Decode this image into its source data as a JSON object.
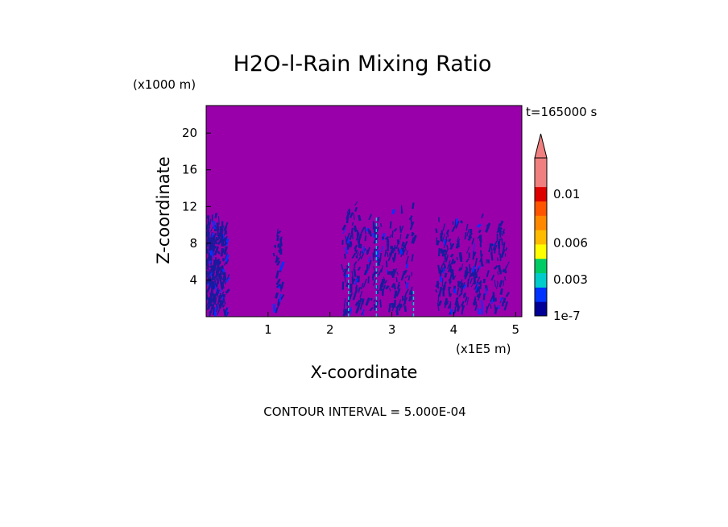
{
  "chart_data": {
    "type": "heatmap",
    "title": "H2O-l-Rain Mixing Ratio",
    "time_label": "t=165000 s",
    "xlabel": "X-coordinate",
    "ylabel": "Z-coordinate",
    "x_unit": "(x1E5 m)",
    "y_unit": "(x1000 m)",
    "xlim": [
      0,
      5.1
    ],
    "ylim": [
      0,
      23
    ],
    "x_ticks": [
      1,
      2,
      3,
      4,
      5
    ],
    "x_tick_labels": [
      "1",
      "2",
      "3",
      "4",
      "5"
    ],
    "y_ticks": [
      4,
      8,
      12,
      16,
      20
    ],
    "y_tick_labels": [
      "4",
      "8",
      "12",
      "16",
      "20"
    ],
    "background_color": "#9900aa",
    "field_color": "#1a1a9e",
    "regions": [
      {
        "x0": 0.0,
        "x1": 0.33,
        "ztop": 11.5,
        "density": "high"
      },
      {
        "x0": 1.1,
        "x1": 1.22,
        "ztop": 11.0,
        "density": "low"
      },
      {
        "x0": 2.2,
        "x1": 3.35,
        "ztop": 12.5,
        "density": "high"
      },
      {
        "x0": 3.7,
        "x1": 4.85,
        "ztop": 11.5,
        "density": "high"
      }
    ],
    "colorbar": {
      "min": 1e-07,
      "max": 0.013,
      "colors": [
        "#000096",
        "#0033ff",
        "#00cccc",
        "#00cc66",
        "#ffff00",
        "#ffbb00",
        "#ff8800",
        "#ff5500",
        "#dd0000",
        "#f08080",
        "#f08080"
      ],
      "tick_labels": [
        "1e-7",
        "0.003",
        "0.006",
        "0.01"
      ],
      "tick_positions": [
        1e-07,
        0.003,
        0.006,
        0.01
      ]
    },
    "contour_interval_label": "CONTOUR INTERVAL = 5.000E-04"
  }
}
